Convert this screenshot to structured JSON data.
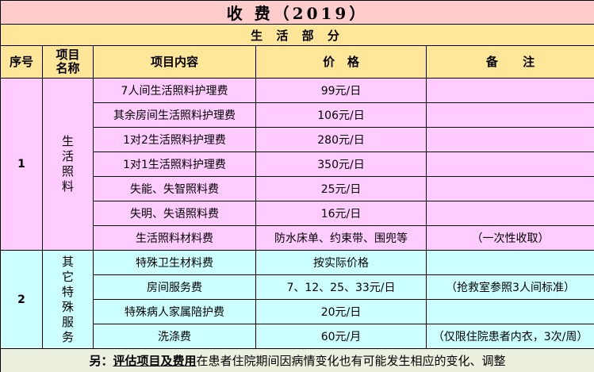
{
  "title": "收 费（2019）",
  "section": "生 活 部 分",
  "headers": {
    "no": "序号",
    "name_line1": "项目",
    "name_line2": "名称",
    "content": "项目内容",
    "price": "价   格",
    "note": "备      注"
  },
  "groups": [
    {
      "no": "1",
      "name_chars": [
        "生",
        "活",
        "照",
        "料"
      ],
      "rows": [
        {
          "content": "7人间生活照料护理费",
          "price": "99元/日",
          "note": ""
        },
        {
          "content": "其余房间生活照料护理费",
          "price": "106元/日",
          "note": ""
        },
        {
          "content": "1对2生活照料护理费",
          "price": "280元/日",
          "note": ""
        },
        {
          "content": "1对1生活照料护理费",
          "price": "350元/日",
          "note": ""
        },
        {
          "content": "失能、失智照料费",
          "price": "25元/日",
          "note": ""
        },
        {
          "content": "失明、失语照料费",
          "price": "16元/日",
          "note": ""
        },
        {
          "content": "生活照料材料费",
          "price": "防水床单、约束带、围兜等",
          "note": "（一次性收取）"
        }
      ]
    },
    {
      "no": "2",
      "name_chars": [
        "其",
        "它",
        "特",
        "殊",
        "服",
        "务"
      ],
      "rows": [
        {
          "content": "特殊卫生材料费",
          "price": "按实际价格",
          "note": ""
        },
        {
          "content": "房间服务费",
          "price": "7、12、25、33元/日",
          "note": "（抢救室参照3人间标准）"
        },
        {
          "content": "特殊病人家属陪护费",
          "price": "20元/日",
          "note": ""
        },
        {
          "content": "洗涤费",
          "price": "60元/月",
          "note": "（仅限住院患者内衣，3次/周）"
        }
      ]
    }
  ],
  "footer": {
    "prefix": "另：",
    "emphasis": "评估项目及费用",
    "rest": "在患者住院期间因病情变化也有可能发生相应的变化、调整"
  }
}
